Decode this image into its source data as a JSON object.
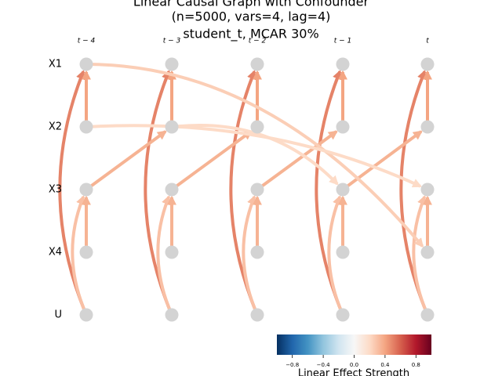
{
  "chart_data": {
    "type": "causal-graph",
    "title": [
      "Linear Causal Graph with Confounder",
      "(n=5000, vars=4, lag=4)",
      "student_t, MCAR 30%"
    ],
    "columns": [
      "t − 4",
      "t − 3",
      "t − 2",
      "t − 1",
      "t"
    ],
    "rows": [
      "X1",
      "X2",
      "X3",
      "X4",
      "U"
    ],
    "edges": [
      {
        "from": [
          "U",
          "t − 4"
        ],
        "to": [
          "X1",
          "t − 4"
        ],
        "strength": 0.5
      },
      {
        "from": [
          "U",
          "t − 3"
        ],
        "to": [
          "X1",
          "t − 3"
        ],
        "strength": 0.5
      },
      {
        "from": [
          "U",
          "t − 2"
        ],
        "to": [
          "X1",
          "t − 2"
        ],
        "strength": 0.5
      },
      {
        "from": [
          "U",
          "t − 1"
        ],
        "to": [
          "X1",
          "t − 1"
        ],
        "strength": 0.5
      },
      {
        "from": [
          "U",
          "t"
        ],
        "to": [
          "X1",
          "t"
        ],
        "strength": 0.5
      },
      {
        "from": [
          "U",
          "t − 4"
        ],
        "to": [
          "X3",
          "t − 4"
        ],
        "strength": 0.3
      },
      {
        "from": [
          "U",
          "t − 3"
        ],
        "to": [
          "X3",
          "t − 3"
        ],
        "strength": 0.3
      },
      {
        "from": [
          "U",
          "t − 2"
        ],
        "to": [
          "X3",
          "t − 2"
        ],
        "strength": 0.3
      },
      {
        "from": [
          "U",
          "t − 1"
        ],
        "to": [
          "X3",
          "t − 1"
        ],
        "strength": 0.3
      },
      {
        "from": [
          "U",
          "t"
        ],
        "to": [
          "X3",
          "t"
        ],
        "strength": 0.3
      },
      {
        "from": [
          "X2",
          "t − 4"
        ],
        "to": [
          "X1",
          "t − 4"
        ],
        "strength": 0.4
      },
      {
        "from": [
          "X2",
          "t − 3"
        ],
        "to": [
          "X1",
          "t − 3"
        ],
        "strength": 0.4
      },
      {
        "from": [
          "X2",
          "t − 2"
        ],
        "to": [
          "X1",
          "t − 2"
        ],
        "strength": 0.4
      },
      {
        "from": [
          "X2",
          "t − 1"
        ],
        "to": [
          "X1",
          "t − 1"
        ],
        "strength": 0.4
      },
      {
        "from": [
          "X2",
          "t"
        ],
        "to": [
          "X1",
          "t"
        ],
        "strength": 0.4
      },
      {
        "from": [
          "X4",
          "t − 4"
        ],
        "to": [
          "X3",
          "t − 4"
        ],
        "strength": 0.35
      },
      {
        "from": [
          "X4",
          "t − 3"
        ],
        "to": [
          "X3",
          "t − 3"
        ],
        "strength": 0.35
      },
      {
        "from": [
          "X4",
          "t − 2"
        ],
        "to": [
          "X3",
          "t − 2"
        ],
        "strength": 0.35
      },
      {
        "from": [
          "X4",
          "t − 1"
        ],
        "to": [
          "X3",
          "t − 1"
        ],
        "strength": 0.35
      },
      {
        "from": [
          "X4",
          "t"
        ],
        "to": [
          "X3",
          "t"
        ],
        "strength": 0.35
      },
      {
        "from": [
          "X3",
          "t − 4"
        ],
        "to": [
          "X2",
          "t − 3"
        ],
        "strength": 0.35
      },
      {
        "from": [
          "X3",
          "t − 3"
        ],
        "to": [
          "X2",
          "t − 2"
        ],
        "strength": 0.35
      },
      {
        "from": [
          "X3",
          "t − 2"
        ],
        "to": [
          "X2",
          "t − 1"
        ],
        "strength": 0.35
      },
      {
        "from": [
          "X3",
          "t − 1"
        ],
        "to": [
          "X2",
          "t"
        ],
        "strength": 0.35
      },
      {
        "from": [
          "X1",
          "t − 4"
        ],
        "to": [
          "X4",
          "t"
        ],
        "strength": 0.25
      },
      {
        "from": [
          "X2",
          "t − 4"
        ],
        "to": [
          "X3",
          "t"
        ],
        "strength": 0.2
      },
      {
        "from": [
          "X2",
          "t − 3"
        ],
        "to": [
          "X3",
          "t − 1"
        ],
        "strength": 0.2
      }
    ],
    "colorbar": {
      "label": "Linear Effect Strength",
      "lim": [
        -1,
        1
      ],
      "ticks": [
        {
          "value": -0.8,
          "label": "−0.8"
        },
        {
          "value": -0.4,
          "label": "−0.4"
        },
        {
          "value": 0,
          "label": "0.0"
        },
        {
          "value": 0.4,
          "label": "0.4"
        },
        {
          "value": 0.8,
          "label": "0.8"
        }
      ]
    }
  }
}
